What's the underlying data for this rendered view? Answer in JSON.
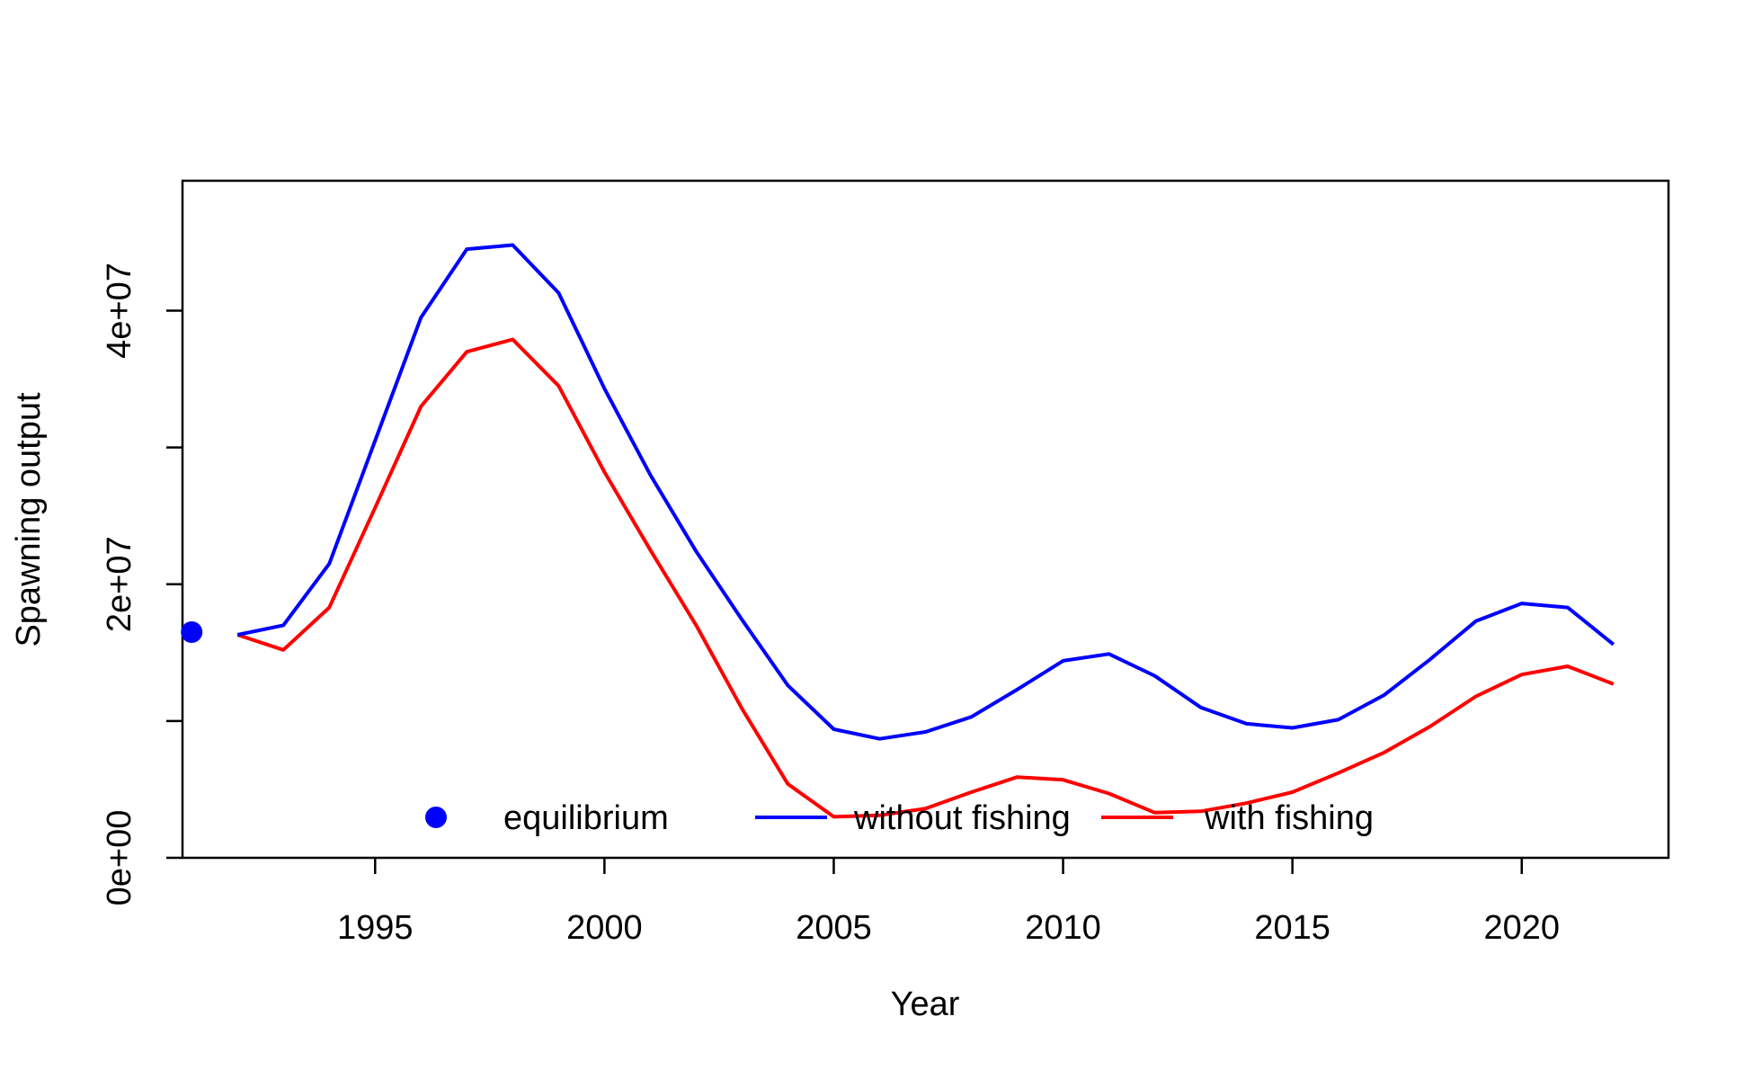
{
  "chart_data": {
    "type": "line",
    "title": "",
    "xlabel": "Year",
    "ylabel": "Spawning output",
    "xlim": [
      1990.8,
      2023.2
    ],
    "ylim": [
      0,
      49500000
    ],
    "x_ticks": [
      1995,
      2000,
      2005,
      2010,
      2015,
      2020
    ],
    "x_tick_labels": [
      "1995",
      "2000",
      "2005",
      "2010",
      "2015",
      "2020"
    ],
    "y_ticks": [
      0,
      10000000,
      20000000,
      30000000,
      40000000
    ],
    "y_tick_labels": [
      {
        "value": 0,
        "label": "0e+00"
      },
      {
        "value": 20000000,
        "label": "2e+07"
      },
      {
        "value": 40000000,
        "label": "4e+07"
      }
    ],
    "grid": false,
    "legend_position": "bottom",
    "legend": [
      {
        "label": "equilibrium",
        "kind": "point",
        "color": "#0000ff"
      },
      {
        "label": "without fishing",
        "kind": "line",
        "color": "#0000ff"
      },
      {
        "label": "with fishing",
        "kind": "line",
        "color": "#ff0000"
      }
    ],
    "equilibrium": {
      "x": 1991,
      "y": 16500000,
      "color": "#0000ff"
    },
    "series": [
      {
        "name": "without fishing",
        "color": "#0000ff",
        "x": [
          1992,
          1993,
          1994,
          1995,
          1996,
          1997,
          1998,
          1999,
          2000,
          2001,
          2002,
          2003,
          2004,
          2005,
          2006,
          2007,
          2008,
          2009,
          2010,
          2011,
          2012,
          2013,
          2014,
          2015,
          2016,
          2017,
          2018,
          2019,
          2020,
          2021,
          2022
        ],
        "y": [
          16300000,
          17000000,
          21500000,
          30500000,
          39500000,
          44500000,
          44800000,
          41300000,
          34300000,
          28000000,
          22400000,
          17400000,
          12600000,
          9400000,
          8700000,
          9200000,
          10300000,
          12300000,
          14400000,
          14900000,
          13300000,
          11000000,
          9800000,
          9500000,
          10100000,
          11900000,
          14500000,
          17300000,
          18600000,
          18300000,
          15600000
        ]
      },
      {
        "name": "with fishing",
        "color": "#ff0000",
        "x": [
          1992,
          1993,
          1994,
          1995,
          1996,
          1997,
          1998,
          1999,
          2000,
          2001,
          2002,
          2003,
          2004,
          2005,
          2006,
          2007,
          2008,
          2009,
          2010,
          2011,
          2012,
          2013,
          2014,
          2015,
          2016,
          2017,
          2018,
          2019,
          2020,
          2021,
          2022
        ],
        "y": [
          16300000,
          15200000,
          18300000,
          25600000,
          33000000,
          37000000,
          37900000,
          34500000,
          28200000,
          22500000,
          17000000,
          10900000,
          5400000,
          3000000,
          3100000,
          3600000,
          4800000,
          5900000,
          5700000,
          4700000,
          3300000,
          3400000,
          4000000,
          4800000,
          6200000,
          7700000,
          9600000,
          11800000,
          13400000,
          14000000,
          12700000
        ]
      }
    ]
  }
}
